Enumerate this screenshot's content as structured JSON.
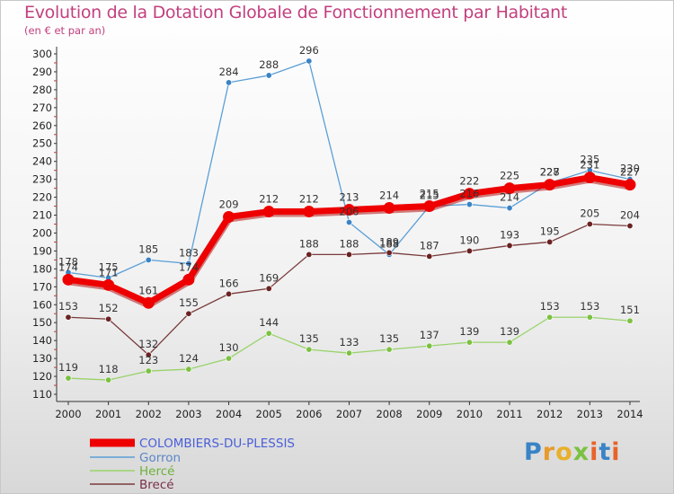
{
  "title": "Evolution de la Dotation Globale de Fonctionnement par Habitant",
  "subtitle": "(en € et par an)",
  "logo_text": "Proxiti",
  "chart_data": {
    "type": "line",
    "categories": [
      "2000",
      "2001",
      "2002",
      "2003",
      "2004",
      "2005",
      "2006",
      "2007",
      "2008",
      "2009",
      "2010",
      "2011",
      "2012",
      "2013",
      "2014"
    ],
    "ylim": [
      110,
      300
    ],
    "yticks": [
      110,
      120,
      130,
      140,
      150,
      160,
      170,
      180,
      190,
      200,
      210,
      220,
      230,
      240,
      250,
      260,
      270,
      280,
      290,
      300
    ],
    "grid": false,
    "legend": "bottom-left",
    "series": [
      {
        "name": "COLOMBIERS-DU-PLESSIS",
        "color": "#ee0000",
        "thick": true,
        "values": [
          174,
          171,
          161,
          174,
          209,
          212,
          212,
          213,
          214,
          215,
          222,
          225,
          227,
          231,
          227
        ]
      },
      {
        "name": "Gorron",
        "color": "#5b9fd6",
        "thick": false,
        "marker": "#3a83c6",
        "values": [
          178,
          175,
          185,
          183,
          284,
          288,
          296,
          206,
          188,
          215,
          216,
          214,
          228,
          235,
          230
        ]
      },
      {
        "name": "Hercé",
        "color": "#99d36a",
        "thick": false,
        "marker": "#7cc142",
        "values": [
          119,
          118,
          123,
          124,
          130,
          144,
          135,
          133,
          135,
          137,
          139,
          139,
          153,
          153,
          151
        ]
      },
      {
        "name": "Brecé",
        "color": "#7a3b3b",
        "thick": false,
        "marker": "#6b2222",
        "values": [
          153,
          152,
          132,
          155,
          166,
          169,
          188,
          188,
          189,
          187,
          190,
          193,
          195,
          205,
          204
        ]
      }
    ]
  }
}
